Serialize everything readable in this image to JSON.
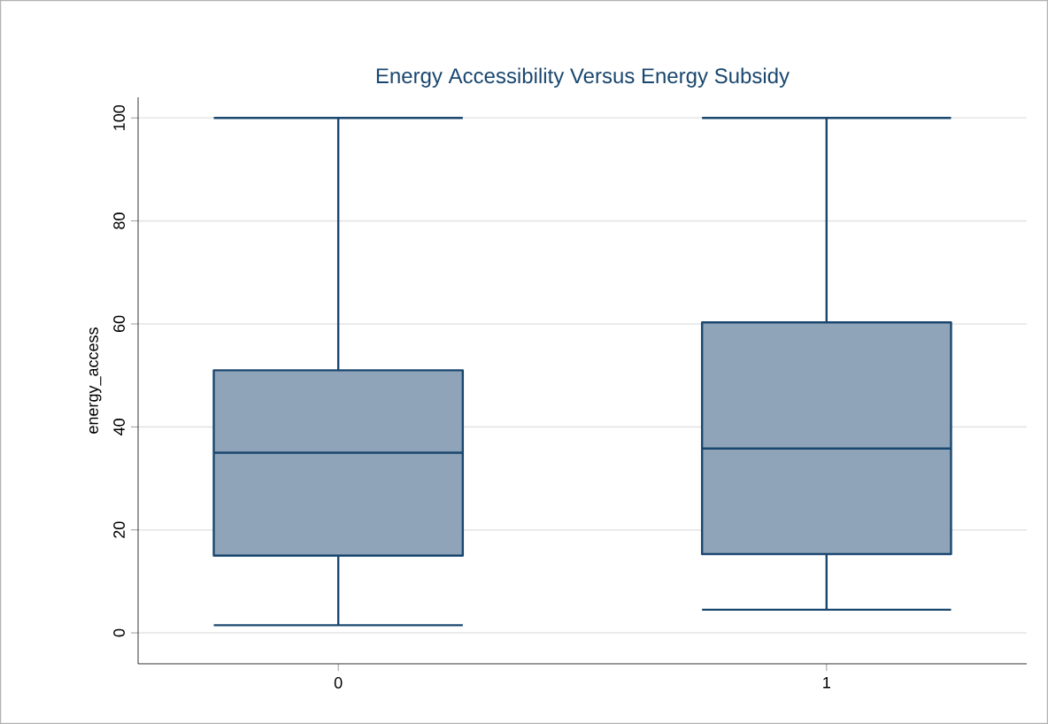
{
  "chart_data": {
    "type": "box",
    "title": "Energy Accessibility Versus Energy Subsidy",
    "ylabel": "energy_access",
    "categories": [
      "0",
      "1"
    ],
    "color": "#8fa4b8",
    "boxes": [
      {
        "low": 1.5,
        "q1": 15,
        "median": 35,
        "q3": 51,
        "high": 100
      },
      {
        "low": 4.5,
        "q1": 15.3,
        "median": 35.8,
        "q3": 60.3,
        "high": 100
      }
    ],
    "ylim": [
      -6,
      104
    ],
    "yticks": [
      0,
      20,
      40,
      60,
      80,
      100
    ],
    "grid": "y"
  }
}
